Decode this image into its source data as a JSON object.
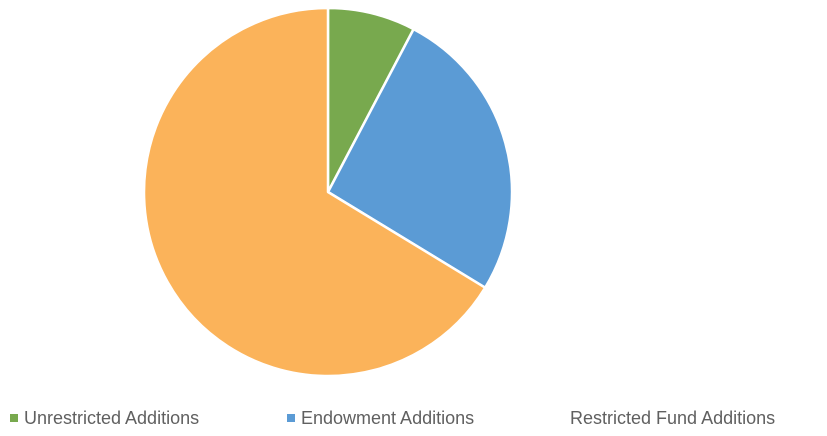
{
  "chart_data": {
    "type": "pie",
    "title": "",
    "start_angle": "12 o'clock",
    "direction": "clockwise",
    "slices": [
      {
        "name": "Unrestricted Additions",
        "value": 7.7,
        "color": "#78a94e"
      },
      {
        "name": "Endowment Additions",
        "value": 26.0,
        "color": "#5b9bd5"
      },
      {
        "name": "Restricted Fund Additions",
        "value": 66.3,
        "color": "#fbb35a"
      }
    ],
    "legend": {
      "position": "bottom",
      "entries": [
        {
          "label": "Unrestricted Additions",
          "swatch_color": "#78a94e"
        },
        {
          "label": "Endowment  Additions",
          "swatch_color": "#5b9bd5"
        },
        {
          "label": "Restricted Fund Additions",
          "swatch_color": ""
        }
      ]
    }
  }
}
